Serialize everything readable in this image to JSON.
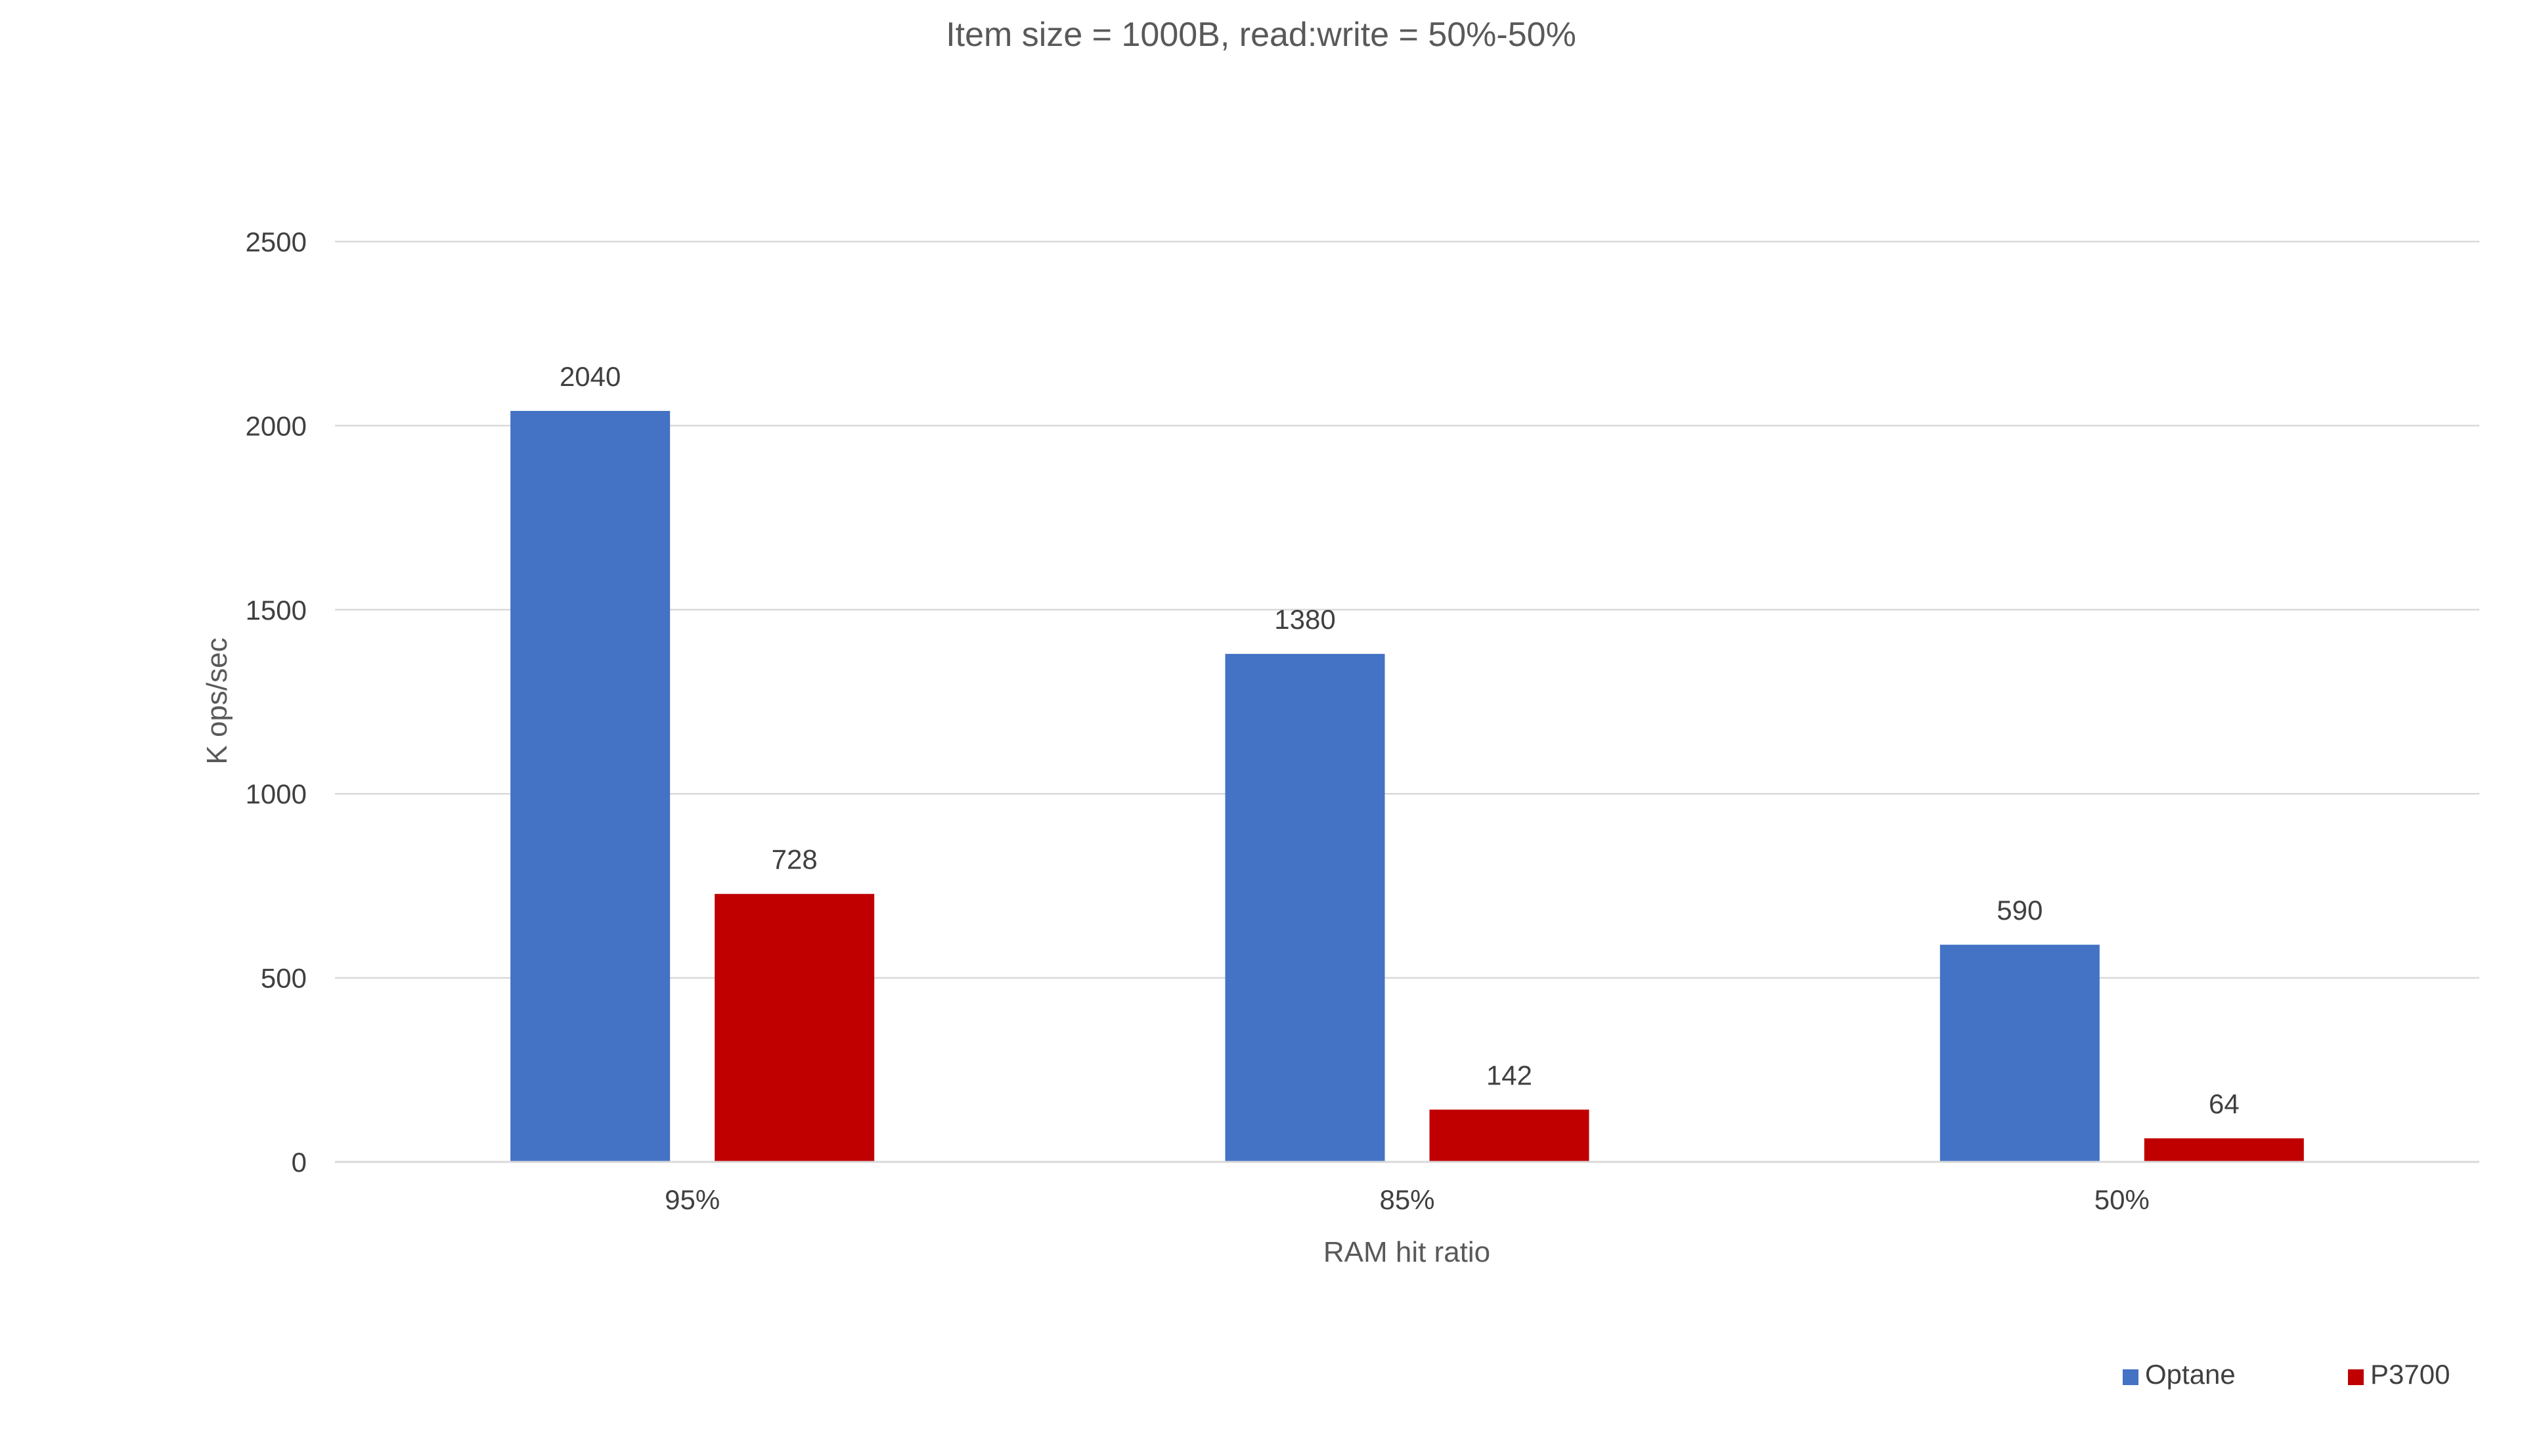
{
  "chart_data": {
    "type": "bar",
    "title": "Item size = 1000B, read:write = 50%-50%",
    "xlabel": "RAM hit ratio",
    "ylabel": "K ops/sec",
    "categories": [
      "95%",
      "85%",
      "50%"
    ],
    "series": [
      {
        "name": "Optane",
        "color": "#4472C4",
        "values": [
          2040,
          1380,
          590
        ]
      },
      {
        "name": "P3700",
        "color": "#C00000",
        "values": [
          728,
          142,
          64
        ]
      }
    ],
    "ylim": [
      0,
      2500
    ],
    "yticks": [
      "0",
      "500",
      "1000",
      "1500",
      "2000",
      "2500"
    ],
    "grid": true,
    "legend_position": "bottom-right"
  }
}
